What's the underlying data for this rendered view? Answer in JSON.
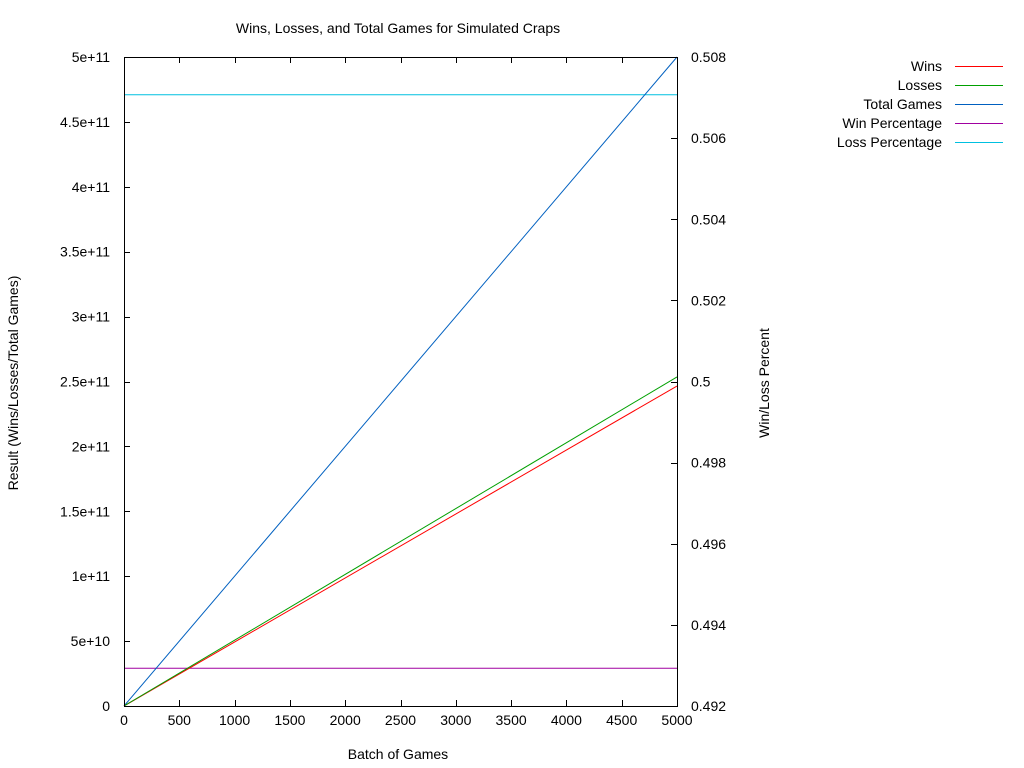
{
  "chart_data": {
    "type": "line",
    "title": "Wins, Losses, and Total Games for Simulated Craps",
    "xlabel": "Batch of Games",
    "ylabel": "Result (Wins/Losses/Total Games)",
    "y2label": "Win/Loss Percent",
    "xlim": [
      0,
      5000
    ],
    "ylim": [
      0,
      500000000000
    ],
    "y2lim": [
      0.492,
      0.508
    ],
    "grid": false,
    "legend_position": "top-right",
    "x_ticks": [
      "0",
      "500",
      "1000",
      "1500",
      "2000",
      "2500",
      "3000",
      "3500",
      "4000",
      "4500",
      "5000"
    ],
    "x_tick_values": [
      0,
      500,
      1000,
      1500,
      2000,
      2500,
      3000,
      3500,
      4000,
      4500,
      5000
    ],
    "y_ticks": [
      "0",
      "5e+10",
      "1e+11",
      "1.5e+11",
      "2e+11",
      "2.5e+11",
      "3e+11",
      "3.5e+11",
      "4e+11",
      "4.5e+11",
      "5e+11"
    ],
    "y_tick_values": [
      0,
      50000000000,
      100000000000,
      150000000000,
      200000000000,
      250000000000,
      300000000000,
      350000000000,
      400000000000,
      450000000000,
      500000000000
    ],
    "y2_ticks": [
      "0.492",
      "0.494",
      "0.496",
      "0.498",
      "0.5",
      "0.502",
      "0.504",
      "0.506",
      "0.508"
    ],
    "y2_tick_values": [
      0.492,
      0.494,
      0.496,
      0.498,
      0.5,
      0.502,
      0.504,
      0.506,
      0.508
    ],
    "series": [
      {
        "name": "Wins",
        "color": "#ff0000",
        "axis": "y",
        "x": [
          0,
          5000
        ],
        "y": [
          0,
          246500000000
        ]
      },
      {
        "name": "Losses",
        "color": "#00a000",
        "axis": "y",
        "x": [
          0,
          5000
        ],
        "y": [
          0,
          253500000000
        ]
      },
      {
        "name": "Total Games",
        "color": "#0060c0",
        "axis": "y",
        "x": [
          0,
          5000
        ],
        "y": [
          0,
          500000000000
        ]
      },
      {
        "name": "Win Percentage",
        "color": "#a000a0",
        "axis": "y2",
        "x": [
          0,
          5000
        ],
        "y": [
          0.49293,
          0.49293
        ]
      },
      {
        "name": "Loss Percentage",
        "color": "#00c0e0",
        "axis": "y2",
        "x": [
          0,
          5000
        ],
        "y": [
          0.50707,
          0.50707
        ]
      }
    ]
  }
}
